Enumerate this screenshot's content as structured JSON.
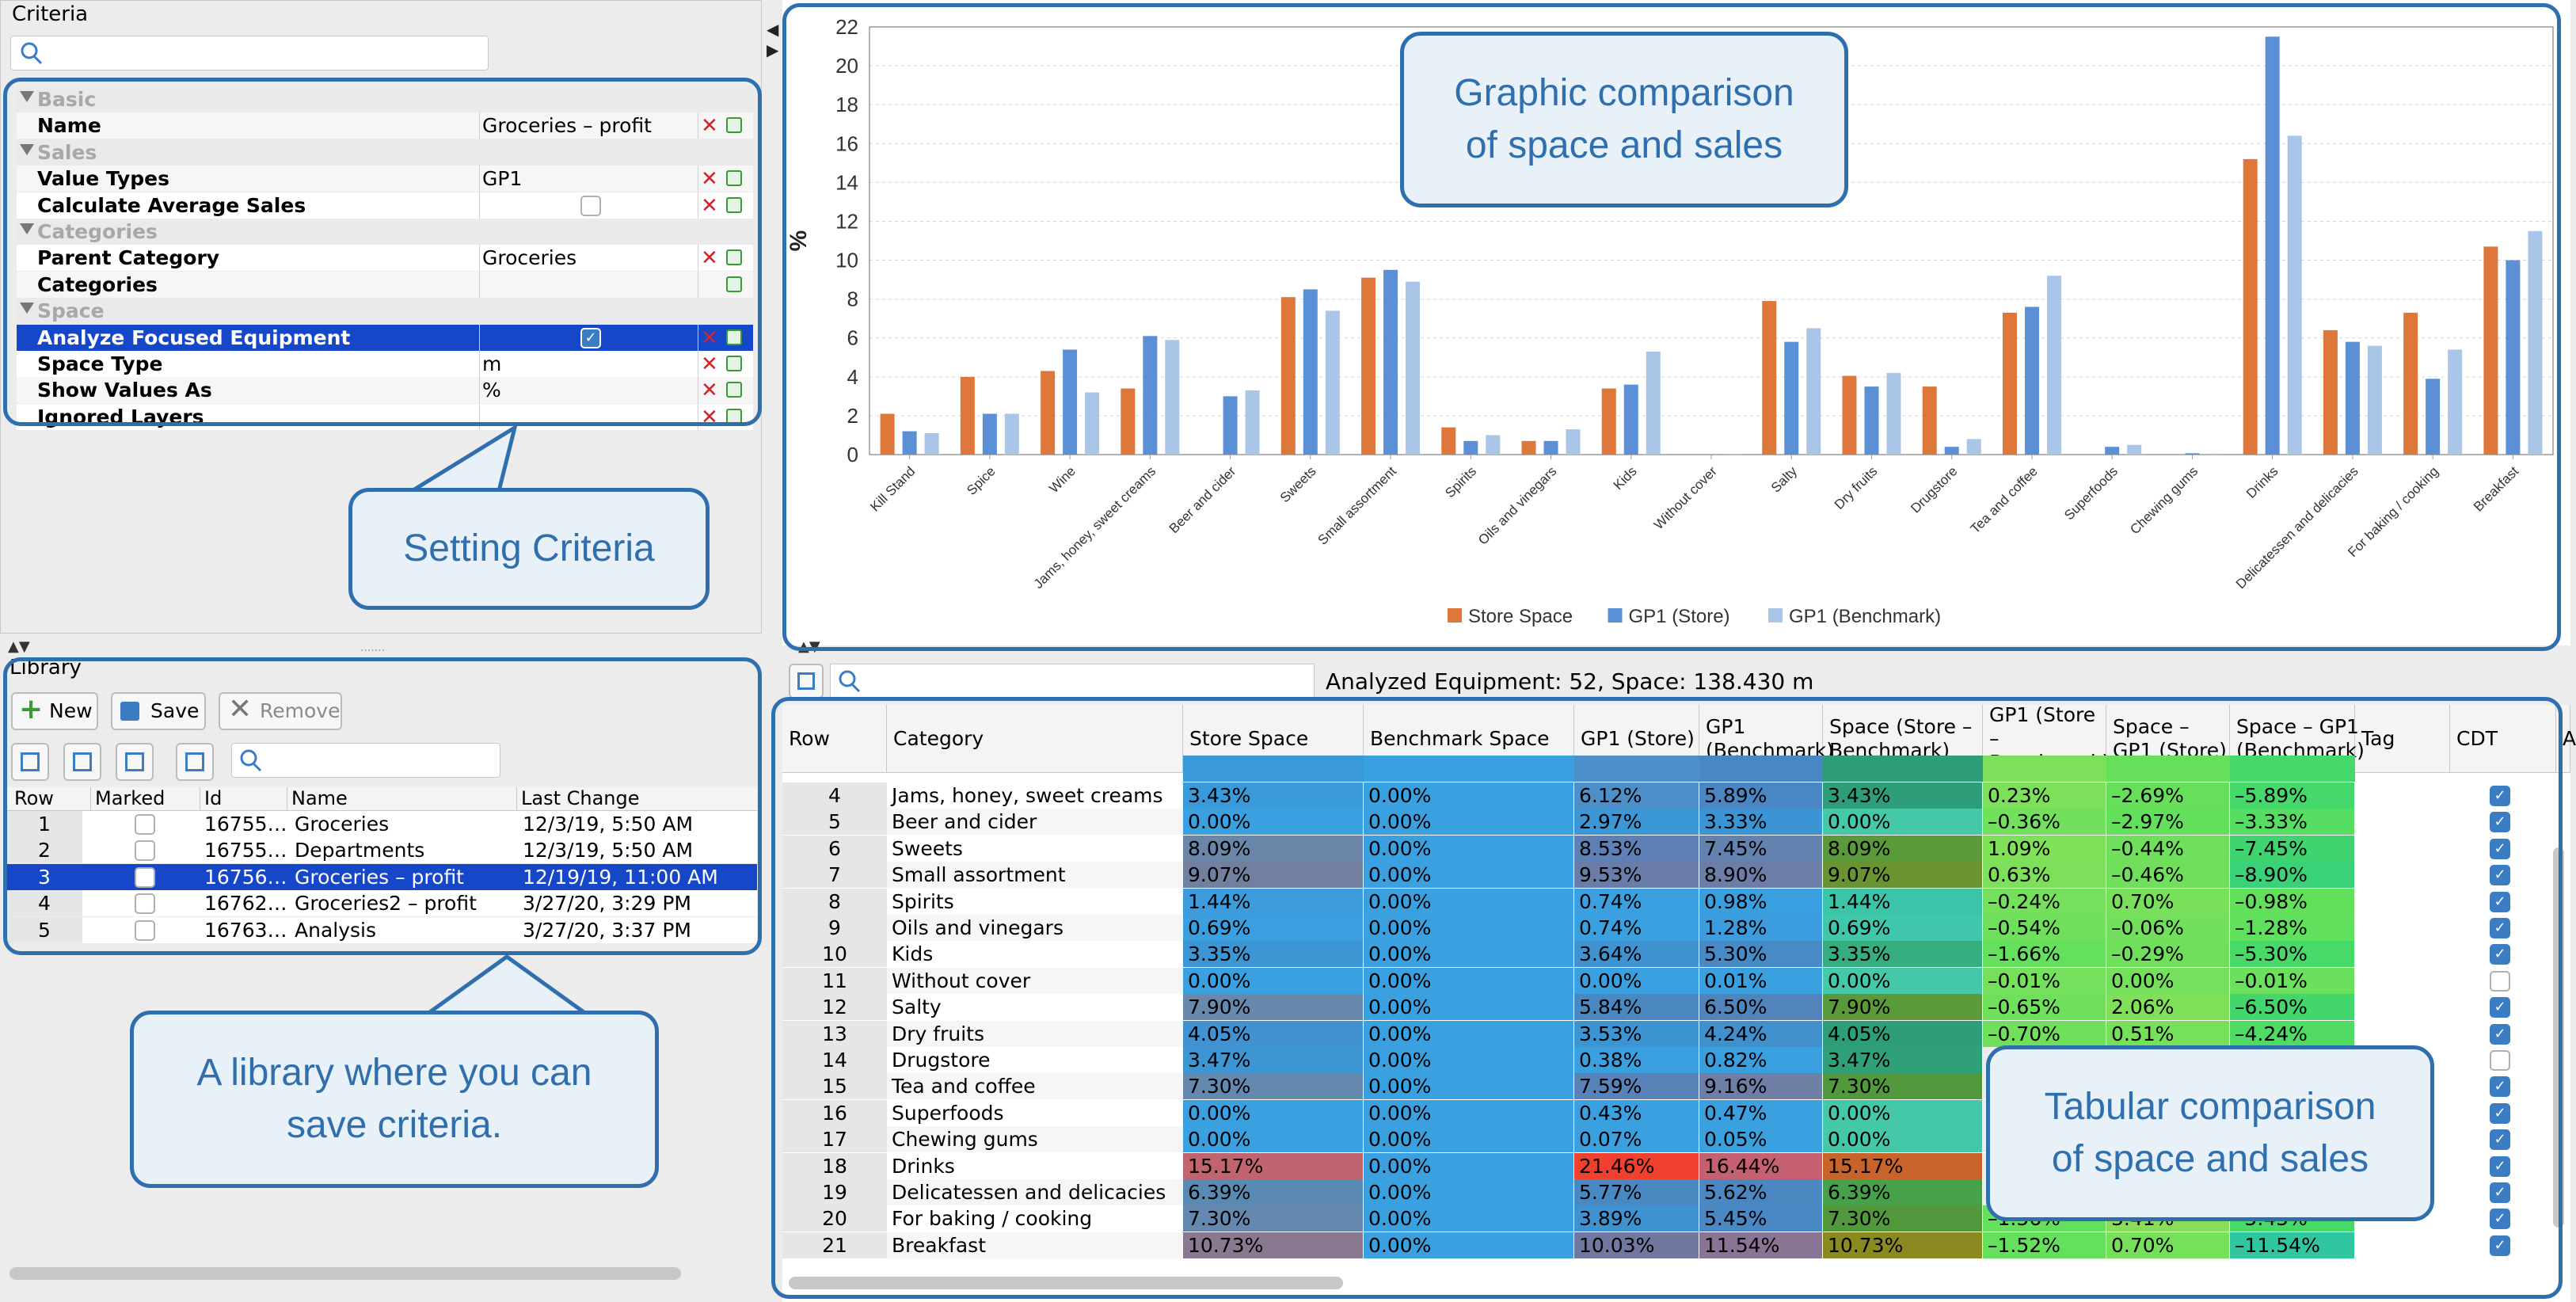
{
  "criteria": {
    "title": "Criteria",
    "search_placeholder": "",
    "rows": [
      {
        "kind": "cat",
        "label": "Basic"
      },
      {
        "kind": "prop",
        "label": "Name",
        "value": "Groceries – profit",
        "check": false
      },
      {
        "kind": "cat",
        "label": "Sales"
      },
      {
        "kind": "prop",
        "label": "Value Types",
        "value": "GP1",
        "check": false
      },
      {
        "kind": "prop",
        "label": "Calculate Average Sales",
        "value": "",
        "check": true,
        "checked": false
      },
      {
        "kind": "cat",
        "label": "Categories"
      },
      {
        "kind": "prop",
        "label": "Parent Category",
        "value": "Groceries",
        "check": false
      },
      {
        "kind": "prop",
        "label": "Categories",
        "value": "",
        "check": false,
        "noX": true
      },
      {
        "kind": "cat",
        "label": "Space"
      },
      {
        "kind": "prop",
        "label": "Analyze Focused Equipment",
        "value": "",
        "check": true,
        "checked": true,
        "selected": true
      },
      {
        "kind": "prop",
        "label": "Space Type",
        "value": "m",
        "check": false
      },
      {
        "kind": "prop",
        "label": "Show Values As",
        "value": "%",
        "check": false
      },
      {
        "kind": "prop",
        "label": "Ignored Layers",
        "value": "",
        "check": false
      }
    ]
  },
  "library": {
    "title": "Library",
    "buttons": {
      "new": "New",
      "save": "Save",
      "remove": "Remove"
    },
    "search_placeholder": "",
    "columns": [
      "Row",
      "Marked",
      "Id",
      "Name",
      "Last Change"
    ],
    "rows": [
      {
        "row": "1",
        "id": "16755…",
        "name": "Groceries",
        "last_change": "12/3/19, 5:50 AM",
        "selected": false
      },
      {
        "row": "2",
        "id": "16755…",
        "name": "Departments",
        "last_change": "12/3/19, 5:50 AM",
        "selected": false
      },
      {
        "row": "3",
        "id": "16756…",
        "name": "Groceries – profit",
        "last_change": "12/19/19, 11:00 AM",
        "selected": true
      },
      {
        "row": "4",
        "id": "16762…",
        "name": "Groceries2 – profit",
        "last_change": "3/27/20, 3:29 PM",
        "selected": false
      },
      {
        "row": "5",
        "id": "16763…",
        "name": "Analysis",
        "last_change": "3/27/20, 3:37 PM",
        "selected": false
      }
    ]
  },
  "summary": {
    "text": "Analyzed Equipment: 52, Space: 138.430 m"
  },
  "table": {
    "columns": [
      "Row",
      "Category",
      "Store Space",
      "Benchmark Space",
      "GP1 (Store)",
      "GP1 (Benchmark)",
      "Space (Store – Benchmark)",
      "GP1 (Store – Benchmark)",
      "Space – GP1 (Store)",
      "Space – GP1 (Benchmark)",
      "Tag",
      "CDT",
      "A"
    ],
    "rows": [
      {
        "row": "4",
        "cat": "Jams, honey, sweet creams",
        "ss": "3.43%",
        "bs": "0.00%",
        "gs": "6.12%",
        "gb": "5.89%",
        "sd": "3.43%",
        "gd": "0.23%",
        "sgs": "–2.69%",
        "sgb": "–5.89%",
        "cdt": true,
        "bg": [
          "#3a9ad9",
          "#3aa0e0",
          "#4d8fc8",
          "#4a86c4",
          "#2e9e7a",
          "#7de05a",
          "#66e05a",
          "#45d86a"
        ]
      },
      {
        "row": "5",
        "cat": "Beer and cider",
        "ss": "0.00%",
        "bs": "0.00%",
        "gs": "2.97%",
        "gb": "3.33%",
        "sd": "0.00%",
        "gd": "–0.36%",
        "sgs": "–2.97%",
        "sgb": "–3.33%",
        "cdt": true,
        "bg": [
          "#3aa0e0",
          "#3aa0e0",
          "#3c97d6",
          "#3b94d3",
          "#45c8a8",
          "#72e05c",
          "#62e05c",
          "#55de62"
        ]
      },
      {
        "row": "6",
        "cat": "Sweets",
        "ss": "8.09%",
        "bs": "0.00%",
        "gs": "8.53%",
        "gb": "7.45%",
        "sd": "8.09%",
        "gd": "1.09%",
        "sgs": "–0.44%",
        "sgb": "–7.45%",
        "cdt": true,
        "bg": [
          "#6a86a8",
          "#3aa0e0",
          "#5f80b4",
          "#6482b0",
          "#5a9a3a",
          "#7fe05a",
          "#70e05c",
          "#3fd470"
        ]
      },
      {
        "row": "7",
        "cat": "Small assortment",
        "ss": "9.07%",
        "bs": "0.00%",
        "gs": "9.53%",
        "gb": "8.90%",
        "sd": "9.07%",
        "gd": "0.63%",
        "sgs": "–0.46%",
        "sgb": "–8.90%",
        "cdt": true,
        "bg": [
          "#7280a0",
          "#3aa0e0",
          "#6a7ca8",
          "#6c7ea6",
          "#6a9432",
          "#7ce05a",
          "#70e05c",
          "#3ad278"
        ]
      },
      {
        "row": "8",
        "cat": "Spirits",
        "ss": "1.44%",
        "bs": "0.00%",
        "gs": "0.74%",
        "gb": "0.98%",
        "sd": "1.44%",
        "gd": "–0.24%",
        "sgs": "0.70%",
        "sgb": "–0.98%",
        "cdt": true,
        "bg": [
          "#3d9cdc",
          "#3aa0e0",
          "#3aa0e0",
          "#3a9fdf",
          "#3cc4a8",
          "#74e05c",
          "#78e05a",
          "#62e05c"
        ]
      },
      {
        "row": "9",
        "cat": "Oils and vinegars",
        "ss": "0.69%",
        "bs": "0.00%",
        "gs": "0.74%",
        "gb": "1.28%",
        "sd": "0.69%",
        "gd": "–0.54%",
        "sgs": "–0.06%",
        "sgb": "–1.28%",
        "cdt": true,
        "bg": [
          "#3b9edf",
          "#3aa0e0",
          "#3aa0e0",
          "#3b9dde",
          "#40c6aa",
          "#70e05c",
          "#72e05c",
          "#60e05c"
        ]
      },
      {
        "row": "10",
        "cat": "Kids",
        "ss": "3.35%",
        "bs": "0.00%",
        "gs": "3.64%",
        "gb": "5.30%",
        "sd": "3.35%",
        "gd": "–1.66%",
        "sgs": "–0.29%",
        "sgb": "–5.30%",
        "cdt": true,
        "bg": [
          "#3d96d4",
          "#3aa0e0",
          "#3e93d0",
          "#468ac6",
          "#36ae80",
          "#64e05c",
          "#70e05c",
          "#48da68"
        ]
      },
      {
        "row": "11",
        "cat": "Without cover",
        "ss": "0.00%",
        "bs": "0.00%",
        "gs": "0.00%",
        "gb": "0.01%",
        "sd": "0.00%",
        "gd": "–0.01%",
        "sgs": "0.00%",
        "sgb": "–0.01%",
        "cdt": false,
        "bg": [
          "#3aa0e0",
          "#3aa0e0",
          "#3aa0e0",
          "#3aa0e0",
          "#45c8a8",
          "#74e05c",
          "#74e05c",
          "#6ae05c"
        ]
      },
      {
        "row": "12",
        "cat": "Salty",
        "ss": "7.90%",
        "bs": "0.00%",
        "gs": "5.84%",
        "gb": "6.50%",
        "sd": "7.90%",
        "gd": "–0.65%",
        "sgs": "2.06%",
        "sgb": "–6.50%",
        "cdt": true,
        "bg": [
          "#6888ac",
          "#3aa0e0",
          "#4a88c2",
          "#5284bc",
          "#5a9a3a",
          "#70e05c",
          "#80e05a",
          "#42d66c"
        ]
      },
      {
        "row": "13",
        "cat": "Dry fruits",
        "ss": "4.05%",
        "bs": "0.00%",
        "gs": "3.53%",
        "gb": "4.24%",
        "sd": "4.05%",
        "gd": "–0.70%",
        "sgs": "0.51%",
        "sgb": "–4.24%",
        "cdt": true,
        "bg": [
          "#4192d0",
          "#3aa0e0",
          "#3d94d2",
          "#4190cc",
          "#2e9e7a",
          "#70e05c",
          "#76e05a",
          "#50dc64"
        ]
      },
      {
        "row": "14",
        "cat": "Drugstore",
        "ss": "3.47%",
        "bs": "0.00%",
        "gs": "0.38%",
        "gb": "0.82%",
        "sd": "3.47%",
        "gd": "",
        "sgs": "",
        "sgb": "",
        "cdt": false,
        "bg": [
          "#3e95d3",
          "#3aa0e0",
          "#3aa0e0",
          "#3a9fdf",
          "#30a078",
          "#ececec",
          "#ececec",
          "#ececec"
        ]
      },
      {
        "row": "15",
        "cat": "Tea and coffee",
        "ss": "7.30%",
        "bs": "0.00%",
        "gs": "7.59%",
        "gb": "9.16%",
        "sd": "7.30%",
        "gd": "",
        "sgs": "",
        "sgb": "",
        "cdt": true,
        "bg": [
          "#6488ae",
          "#3aa0e0",
          "#5882b8",
          "#6e7ea4",
          "#52983c",
          "#ececec",
          "#ececec",
          "#ececec"
        ]
      },
      {
        "row": "16",
        "cat": "Superfoods",
        "ss": "0.00%",
        "bs": "0.00%",
        "gs": "0.43%",
        "gb": "0.47%",
        "sd": "0.00%",
        "gd": "",
        "sgs": "",
        "sgb": "",
        "cdt": true,
        "bg": [
          "#3aa0e0",
          "#3aa0e0",
          "#3aa0e0",
          "#3aa0e0",
          "#45c8a8",
          "#ececec",
          "#ececec",
          "#ececec"
        ]
      },
      {
        "row": "17",
        "cat": "Chewing gums",
        "ss": "0.00%",
        "bs": "0.00%",
        "gs": "0.07%",
        "gb": "0.05%",
        "sd": "0.00%",
        "gd": "",
        "sgs": "",
        "sgb": "",
        "cdt": true,
        "bg": [
          "#3aa0e0",
          "#3aa0e0",
          "#3aa0e0",
          "#3aa0e0",
          "#45c8a8",
          "#ececec",
          "#ececec",
          "#ececec"
        ]
      },
      {
        "row": "18",
        "cat": "Drinks",
        "ss": "15.17%",
        "bs": "0.00%",
        "gs": "21.46%",
        "gb": "16.44%",
        "sd": "15.17%",
        "gd": "",
        "sgs": "",
        "sgb": "",
        "cdt": true,
        "bg": [
          "#c26470",
          "#3aa0e0",
          "#f0402e",
          "#c46070",
          "#c8642a",
          "#ececec",
          "#ececec",
          "#ececec"
        ]
      },
      {
        "row": "19",
        "cat": "Delicatessen and delicacies",
        "ss": "6.39%",
        "bs": "0.00%",
        "gs": "5.77%",
        "gb": "5.62%",
        "sd": "6.39%",
        "gd": "",
        "sgs": "",
        "sgb": "",
        "cdt": true,
        "bg": [
          "#5a8ab4",
          "#3aa0e0",
          "#4a88c2",
          "#4b87c1",
          "#46a24a",
          "#ececec",
          "#ececec",
          "#ececec"
        ]
      },
      {
        "row": "20",
        "cat": "For baking / cooking",
        "ss": "7.30%",
        "bs": "0.00%",
        "gs": "3.89%",
        "gb": "5.45%",
        "sd": "7.30%",
        "gd": "–1.56%",
        "sgs": "3.41%",
        "sgb": "–5.45%",
        "cdt": true,
        "bg": [
          "#6488ae",
          "#3aa0e0",
          "#3e92d0",
          "#4a88c4",
          "#52983c",
          "#64e05c",
          "#88de58",
          "#48da68"
        ]
      },
      {
        "row": "21",
        "cat": "Breakfast",
        "ss": "10.73%",
        "bs": "0.00%",
        "gs": "10.03%",
        "gb": "11.54%",
        "sd": "10.73%",
        "gd": "–1.52%",
        "sgs": "0.70%",
        "sgb": "–11.54%",
        "cdt": true,
        "bg": [
          "#8a7890",
          "#3aa0e0",
          "#7078a0",
          "#8a7494",
          "#8a8a20",
          "#64e05c",
          "#76e05a",
          "#30c6a0"
        ]
      }
    ]
  },
  "chart_data": {
    "type": "bar",
    "ylabel": "%",
    "ylim": [
      0,
      22
    ],
    "yticks": [
      "0",
      "2",
      "4",
      "6",
      "8",
      "10",
      "12",
      "14",
      "16",
      "18",
      "20",
      "22"
    ],
    "grid": true,
    "legend_placement": "bottom",
    "categories": [
      "Kill Stand",
      "Spice",
      "Wine",
      "Jams, honey, sweet creams",
      "Beer and cider",
      "Sweets",
      "Small assortment",
      "Spirits",
      "Oils and vinegars",
      "Kids",
      "Without cover",
      "Salty",
      "Dry fruits",
      "Drugstore",
      "Tea and coffee",
      "Superfoods",
      "Chewing gums",
      "Drinks",
      "Delicatessen and delicacies",
      "For baking / cooking",
      "Breakfast"
    ],
    "series": [
      {
        "name": "Store Space",
        "color": "#e0773a",
        "values": [
          2.1,
          4.0,
          4.3,
          3.4,
          0.0,
          8.1,
          9.1,
          1.4,
          0.7,
          3.4,
          0.0,
          7.9,
          4.05,
          3.5,
          7.3,
          0.0,
          0.0,
          15.2,
          6.4,
          7.3,
          10.7
        ]
      },
      {
        "name": "GP1 (Store)",
        "color": "#5b8fd6",
        "values": [
          1.2,
          2.1,
          5.4,
          6.1,
          3.0,
          8.5,
          9.5,
          0.7,
          0.7,
          3.6,
          0.0,
          5.8,
          3.5,
          0.4,
          7.6,
          0.4,
          0.07,
          21.5,
          5.8,
          3.9,
          10.0
        ]
      },
      {
        "name": "GP1 (Benchmark)",
        "color": "#a9c6e8",
        "values": [
          1.1,
          2.1,
          3.2,
          5.9,
          3.3,
          7.4,
          8.9,
          1.0,
          1.3,
          5.3,
          0.01,
          6.5,
          4.2,
          0.8,
          9.2,
          0.5,
          0.05,
          16.4,
          5.6,
          5.4,
          11.5
        ]
      }
    ]
  },
  "callouts": {
    "graphic": "Graphic comparison of space and sales",
    "setting": "Setting Criteria",
    "library": "A library where you can save criteria.",
    "tabular": "Tabular comparison of space and sales"
  }
}
